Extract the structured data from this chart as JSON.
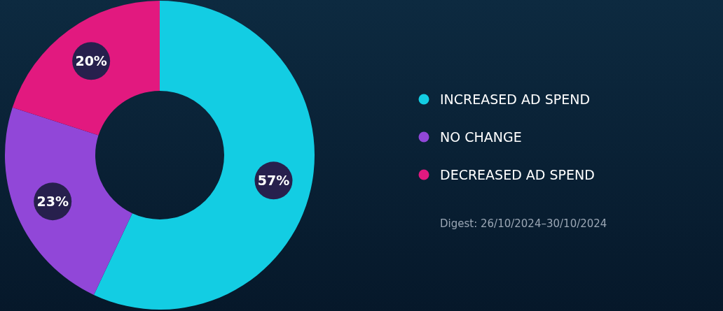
{
  "chart_data": {
    "type": "donut",
    "categories": [
      "INCREASED AD SPEND",
      "NO CHANGE",
      "DECREASED AD SPEND"
    ],
    "values": [
      57,
      23,
      20
    ],
    "colors": [
      "#13cde3",
      "#9147d8",
      "#e2197f"
    ],
    "value_labels": [
      "57%",
      "23%",
      "20%"
    ],
    "legend": "right",
    "annotations": [
      "Digest: 26/10/2024–30/10/2024"
    ]
  }
}
